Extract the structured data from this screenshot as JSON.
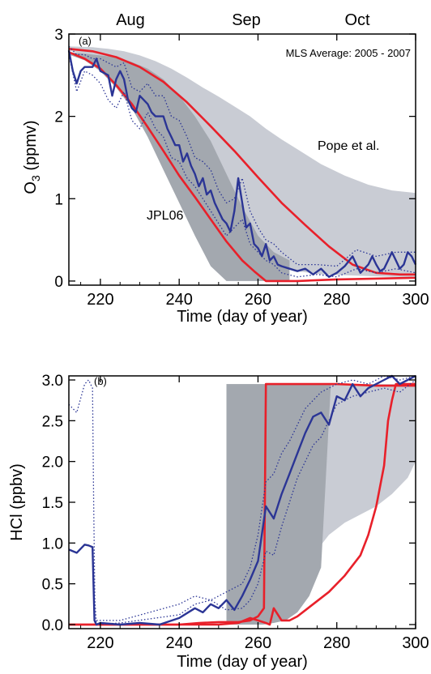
{
  "months": [
    "Aug",
    "Sep",
    "Oct"
  ],
  "chart_data": [
    {
      "type": "line",
      "panel_label": "(a)",
      "annotation": "MLS Average: 2005 - 2007",
      "model_labels": [
        "Pope et al.",
        "JPL06"
      ],
      "xlabel": "Time (day of year)",
      "ylabel": "O",
      "ylabel_sub": "3",
      "ylabel_unit": " (ppmv)",
      "xlim": [
        212,
        300
      ],
      "ylim": [
        -0.05,
        3.0
      ],
      "xticks": [
        220,
        240,
        260,
        280,
        300
      ],
      "yticks": [
        0,
        1,
        2,
        3
      ],
      "colors": {
        "light_band": "#c9ccd4",
        "dark_band": "#a3a8af",
        "model": "#e8202a",
        "mls": "#2b3595"
      },
      "bands": [
        {
          "x": [
            212,
            218,
            222,
            226,
            230,
            234,
            238,
            242,
            246,
            250,
            254,
            258,
            262,
            266,
            270,
            276,
            282,
            288,
            294,
            300
          ],
          "upper": [
            2.85,
            2.84,
            2.82,
            2.79,
            2.74,
            2.67,
            2.58,
            2.47,
            2.35,
            2.24,
            2.12,
            2.0,
            1.85,
            1.72,
            1.6,
            1.42,
            1.28,
            1.17,
            1.1,
            1.07
          ],
          "lower": [
            2.8,
            2.72,
            2.58,
            2.4,
            2.18,
            1.95,
            1.72,
            1.45,
            1.2,
            0.95,
            0.72,
            0.5,
            0.3,
            0.18,
            0.12,
            0.08,
            0.07,
            0.06,
            0.05,
            0.05
          ]
        },
        {
          "x": [
            212,
            216,
            220,
            224,
            228,
            232,
            236,
            240,
            244,
            248,
            252,
            256,
            260,
            264,
            268
          ],
          "upper": [
            2.78,
            2.76,
            2.74,
            2.72,
            2.66,
            2.58,
            2.45,
            2.25,
            2.0,
            1.7,
            1.3,
            0.9,
            0.55,
            0.35,
            0.25
          ],
          "lower": [
            2.75,
            2.68,
            2.55,
            2.35,
            2.1,
            1.75,
            1.35,
            0.95,
            0.55,
            0.18,
            0.0,
            0.0,
            0.0,
            0.0,
            0.0
          ]
        }
      ],
      "series": [
        {
          "role": "model",
          "x": [
            212,
            218,
            224,
            230,
            236,
            242,
            248,
            254,
            260,
            266,
            272,
            278,
            284,
            290,
            296,
            300
          ],
          "values": [
            2.82,
            2.79,
            2.72,
            2.6,
            2.42,
            2.17,
            1.88,
            1.58,
            1.26,
            0.95,
            0.68,
            0.42,
            0.2,
            0.1,
            0.08,
            0.08
          ]
        },
        {
          "role": "model",
          "x": [
            212,
            216,
            220,
            224,
            228,
            232,
            236,
            240,
            244,
            248,
            252,
            256,
            259,
            262,
            266,
            270,
            280,
            290,
            300
          ],
          "values": [
            2.78,
            2.7,
            2.58,
            2.38,
            2.15,
            1.87,
            1.58,
            1.28,
            1.02,
            0.75,
            0.48,
            0.25,
            0.12,
            0.0,
            0.0,
            0.0,
            0.02,
            0.03,
            0.04
          ]
        },
        {
          "role": "mls",
          "x": [
            212,
            213,
            214,
            215,
            216,
            218,
            219,
            220,
            222,
            223,
            224,
            225,
            226,
            227,
            228,
            229,
            230,
            231,
            232,
            233,
            234,
            235,
            236,
            237,
            238,
            239,
            240,
            241,
            242,
            243,
            244,
            245,
            246,
            247,
            248,
            249,
            250,
            251,
            252,
            253,
            254,
            255,
            256,
            257,
            258,
            259,
            260,
            261,
            262,
            263,
            264,
            265,
            266,
            268,
            270,
            272,
            274,
            276,
            278,
            280,
            282,
            284,
            285,
            286,
            287,
            288,
            289,
            290,
            291,
            292,
            293,
            294,
            295,
            296,
            297,
            298,
            299,
            300
          ],
          "values": [
            2.8,
            2.55,
            2.4,
            2.55,
            2.6,
            2.6,
            2.7,
            2.55,
            2.5,
            2.25,
            2.45,
            2.55,
            2.45,
            2.2,
            2.1,
            2.05,
            2.25,
            2.2,
            2.15,
            2.05,
            2.0,
            2.0,
            2.0,
            1.85,
            1.75,
            1.65,
            1.65,
            1.45,
            1.55,
            1.4,
            1.3,
            1.15,
            1.25,
            1.05,
            1.1,
            0.95,
            0.85,
            0.75,
            0.7,
            0.6,
            0.85,
            1.25,
            0.95,
            0.65,
            0.7,
            0.45,
            0.4,
            0.3,
            0.45,
            0.25,
            0.3,
            0.2,
            0.18,
            0.15,
            0.12,
            0.15,
            0.08,
            0.15,
            0.05,
            0.1,
            0.18,
            0.3,
            0.2,
            0.1,
            0.15,
            0.2,
            0.3,
            0.2,
            0.12,
            0.15,
            0.25,
            0.35,
            0.25,
            0.15,
            0.2,
            0.35,
            0.3,
            0.2
          ]
        },
        {
          "role": "mls_dotted",
          "x": [
            212,
            214,
            216,
            218,
            220,
            222,
            224,
            226,
            228,
            230,
            232,
            234,
            236,
            238,
            240,
            242,
            244,
            246,
            248,
            250,
            252,
            254,
            256,
            258,
            260,
            262,
            264,
            266,
            270,
            275,
            280,
            285,
            290,
            295,
            300
          ],
          "values": [
            2.75,
            2.3,
            2.55,
            2.5,
            2.4,
            2.2,
            2.1,
            2.3,
            1.95,
            1.85,
            2.05,
            1.85,
            1.75,
            1.5,
            1.45,
            1.25,
            1.15,
            1.0,
            0.85,
            0.7,
            0.55,
            0.65,
            0.75,
            0.45,
            0.35,
            0.25,
            0.2,
            0.1,
            0.05,
            0.08,
            0.05,
            0.15,
            0.1,
            0.15,
            0.1
          ]
        },
        {
          "role": "mls_dotted",
          "x": [
            212,
            214,
            216,
            218,
            220,
            222,
            224,
            226,
            228,
            230,
            232,
            234,
            236,
            238,
            240,
            242,
            244,
            246,
            248,
            250,
            252,
            254,
            256,
            258,
            260,
            262,
            264,
            266,
            270,
            275,
            280,
            285,
            290,
            295,
            300
          ],
          "values": [
            2.85,
            2.75,
            2.75,
            2.7,
            2.7,
            2.65,
            2.6,
            2.65,
            2.35,
            2.3,
            2.4,
            2.25,
            2.25,
            2.0,
            1.95,
            1.75,
            1.5,
            1.45,
            1.35,
            1.1,
            0.95,
            1.0,
            1.25,
            0.85,
            0.65,
            0.5,
            0.45,
            0.35,
            0.2,
            0.2,
            0.18,
            0.38,
            0.3,
            0.35,
            0.35
          ]
        }
      ]
    },
    {
      "type": "line",
      "panel_label": "(b)",
      "xlabel": "Time (day of year)",
      "ylabel": "HCl (ppbv)",
      "xlim": [
        212,
        300
      ],
      "ylim": [
        -0.05,
        3.05
      ],
      "xticks": [
        220,
        240,
        260,
        280,
        300
      ],
      "yticks": [
        "0.0",
        "0.5",
        "1.0",
        "1.5",
        "2.0",
        "2.5",
        "3.0"
      ],
      "colors": {
        "light_band": "#c9ccd4",
        "dark_band": "#a3a8af",
        "model": "#e8202a",
        "mls": "#2b3595"
      },
      "bands": [
        {
          "x": [
            252,
            262,
            266,
            270,
            274,
            278,
            282,
            286,
            290,
            294,
            298,
            300
          ],
          "upper": [
            2.95,
            2.95,
            2.95,
            2.95,
            2.95,
            2.95,
            2.95,
            2.95,
            2.95,
            2.95,
            2.95,
            2.95
          ],
          "lower": [
            0.0,
            0.0,
            0.15,
            0.5,
            0.85,
            1.1,
            1.25,
            1.35,
            1.45,
            1.6,
            1.8,
            2.0
          ]
        },
        {
          "x": [
            252,
            255,
            258,
            261,
            264,
            267,
            270,
            273,
            276,
            278.5
          ],
          "upper": [
            2.95,
            2.95,
            2.95,
            2.95,
            2.95,
            2.95,
            2.95,
            2.95,
            2.95,
            2.95
          ],
          "lower": [
            0.0,
            0.0,
            0.0,
            0.0,
            0.02,
            0.05,
            0.15,
            0.35,
            0.7,
            2.95
          ]
        }
      ],
      "series": [
        {
          "role": "model",
          "x": [
            212,
            240,
            245,
            250,
            255,
            258,
            260,
            261.5,
            262,
            262.5,
            264,
            270,
            280,
            290,
            300
          ],
          "values": [
            0.0,
            0.0,
            0.02,
            0.03,
            0.03,
            0.05,
            0.1,
            0.2,
            2.95,
            2.95,
            2.95,
            2.95,
            2.95,
            2.93,
            2.93
          ]
        },
        {
          "role": "model",
          "x": [
            212,
            250,
            255,
            258,
            260,
            262,
            263,
            264,
            266,
            268,
            270,
            274,
            278,
            282,
            286,
            288,
            290,
            292,
            293,
            294,
            295,
            300
          ],
          "values": [
            0.0,
            0.0,
            0.02,
            0.08,
            0.05,
            0.02,
            0.0,
            0.2,
            0.05,
            0.05,
            0.1,
            0.25,
            0.4,
            0.6,
            0.85,
            1.1,
            1.45,
            1.95,
            2.5,
            2.75,
            2.95,
            2.95
          ]
        },
        {
          "role": "mls",
          "x": [
            212,
            214,
            216,
            217,
            218,
            218.5,
            219,
            220,
            225,
            230,
            235,
            240,
            244,
            246,
            248,
            250,
            252,
            254,
            256,
            258,
            260,
            262,
            264,
            266,
            268,
            270,
            272,
            274,
            276,
            278,
            280,
            282,
            284,
            286,
            288,
            290,
            292,
            294,
            296,
            298,
            300
          ],
          "values": [
            0.92,
            0.88,
            0.98,
            0.97,
            0.95,
            0.05,
            0.0,
            0.02,
            0.0,
            0.02,
            0.0,
            0.08,
            0.2,
            0.15,
            0.25,
            0.2,
            0.3,
            0.18,
            0.35,
            0.55,
            0.78,
            1.45,
            1.3,
            1.6,
            1.85,
            2.1,
            2.35,
            2.55,
            2.6,
            2.45,
            2.8,
            2.75,
            2.95,
            2.8,
            2.9,
            2.95,
            3.0,
            3.05,
            2.95,
            3.0,
            3.05
          ]
        },
        {
          "role": "mls_dotted",
          "x": [
            212,
            214,
            216,
            217,
            218,
            218.3,
            218.6,
            219,
            225,
            240,
            244,
            248,
            252,
            256,
            258,
            260,
            262,
            264,
            266,
            268,
            270,
            272,
            274,
            276,
            278,
            280,
            284,
            288,
            292,
            296,
            300
          ],
          "values": [
            2.7,
            2.6,
            2.95,
            3.0,
            2.9,
            1.5,
            0.3,
            0.0,
            0.02,
            0.12,
            0.25,
            0.3,
            0.18,
            0.2,
            0.3,
            0.5,
            0.9,
            0.85,
            1.2,
            1.5,
            1.8,
            2.0,
            2.2,
            2.3,
            2.5,
            2.7,
            2.8,
            2.85,
            2.9,
            2.85,
            3.0
          ]
        },
        {
          "role": "mls_dotted",
          "x": [
            219,
            225,
            240,
            244,
            248,
            252,
            256,
            258,
            260,
            262,
            264,
            266,
            268,
            270,
            272,
            274,
            276,
            278,
            280,
            284,
            288,
            292,
            296,
            300
          ],
          "values": [
            0.05,
            0.05,
            0.25,
            0.35,
            0.3,
            0.4,
            0.5,
            0.7,
            1.1,
            1.75,
            1.85,
            2.1,
            2.25,
            2.45,
            2.65,
            2.75,
            2.85,
            2.9,
            2.95,
            3.0,
            2.95,
            3.05,
            3.0,
            3.05
          ]
        }
      ]
    }
  ]
}
